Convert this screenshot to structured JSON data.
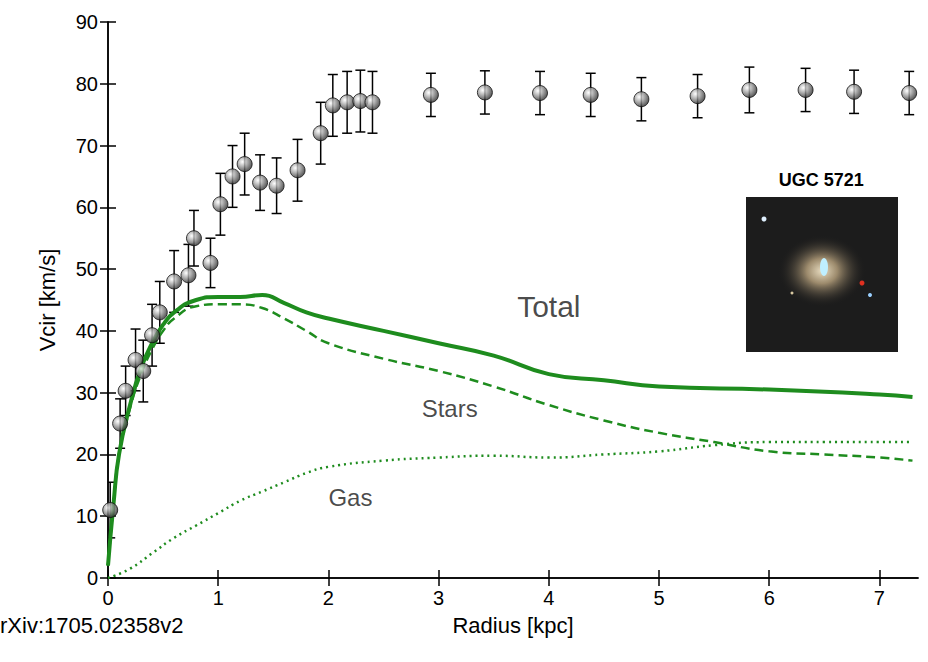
{
  "chart_data": {
    "type": "scatter",
    "x_label": "Radius [kpc]",
    "y_label": "Vcir [km/s]",
    "xlim": [
      0,
      7.35
    ],
    "ylim": [
      0,
      90
    ],
    "xticks": [
      0,
      1,
      2,
      3,
      4,
      5,
      6,
      7
    ],
    "yticks": [
      0,
      10,
      20,
      30,
      40,
      50,
      60,
      70,
      80,
      90
    ],
    "grid": false,
    "series": [
      {
        "type": "scatter",
        "color": "#9a9a9a",
        "marker": "circle",
        "x": [
          0.02,
          0.11,
          0.16,
          0.25,
          0.32,
          0.4,
          0.47,
          0.6,
          0.73,
          0.78,
          0.93,
          1.02,
          1.13,
          1.24,
          1.38,
          1.53,
          1.72,
          1.93,
          2.04,
          2.17,
          2.29,
          2.4,
          2.93,
          3.42,
          3.92,
          4.38,
          4.84,
          5.35,
          5.82,
          6.33,
          6.77,
          7.27
        ],
        "values": [
          11,
          25,
          30.3,
          35.3,
          33.5,
          39.3,
          43,
          48,
          49,
          55,
          51,
          60.5,
          65,
          67,
          64,
          63.5,
          66,
          72,
          76.5,
          77,
          77.2,
          77,
          78.2,
          78.6,
          78.5,
          78.2,
          77.5,
          78,
          79,
          79,
          78.7,
          78.5
        ],
        "errors": [
          4.5,
          4,
          4,
          5,
          5,
          5,
          5,
          5,
          5,
          4.5,
          4,
          5,
          5,
          5,
          4.5,
          4.5,
          5,
          5,
          5,
          5,
          5,
          5,
          3.5,
          3.5,
          3.5,
          3.5,
          3.5,
          3.5,
          3.7,
          3.5,
          3.5,
          3.5
        ]
      },
      {
        "type": "line",
        "color": "#1e8c1e",
        "line_style": "solid",
        "x": [
          0,
          0.05,
          0.1,
          0.2,
          0.3,
          0.4,
          0.5,
          0.6,
          0.8,
          1.0,
          1.2,
          1.4,
          1.6,
          1.8,
          2,
          2.5,
          3,
          3.5,
          4,
          4.5,
          5,
          6,
          7,
          7.3
        ],
        "values": [
          2,
          12,
          20,
          28,
          34,
          38,
          41,
          43,
          45,
          45.5,
          45.5,
          45.8,
          44.5,
          43,
          42,
          40,
          38,
          36,
          33,
          32,
          31,
          30.5,
          29.7,
          29.3
        ]
      },
      {
        "type": "line",
        "color": "#1e8c1e",
        "line_style": "dashed",
        "x": [
          0,
          0.05,
          0.1,
          0.2,
          0.3,
          0.4,
          0.5,
          0.6,
          0.8,
          1.0,
          1.2,
          1.4,
          1.6,
          1.8,
          2,
          2.5,
          3,
          3.5,
          4,
          4.5,
          5,
          5.5,
          6,
          6.5,
          7,
          7.3
        ],
        "values": [
          2,
          12,
          20,
          27.5,
          33,
          37,
          40,
          42,
          44,
          44.3,
          44.3,
          43.7,
          42,
          40,
          38,
          35.5,
          33.5,
          31,
          28,
          25.5,
          23.5,
          22,
          20.5,
          20,
          19.5,
          19
        ]
      },
      {
        "type": "line",
        "color": "#1e8c1e",
        "line_style": "dotted",
        "x": [
          0,
          0.2,
          0.4,
          0.6,
          0.8,
          1.0,
          1.2,
          1.4,
          1.6,
          1.8,
          2,
          2.5,
          3,
          3.5,
          4,
          4.5,
          5,
          5.5,
          6,
          6.5,
          7,
          7.3
        ],
        "values": [
          0,
          1.5,
          4,
          6.5,
          8.5,
          10.5,
          12.5,
          14,
          15.5,
          17,
          18,
          19,
          19.5,
          19.8,
          19.5,
          20,
          20.5,
          21.5,
          22,
          22,
          22,
          22
        ]
      }
    ],
    "annotations": [
      {
        "text": "Total",
        "x": 4.0,
        "y": 44
      },
      {
        "text": "Stars",
        "x": 3.1,
        "y": 27.5
      },
      {
        "text": "Gas",
        "x": 2.2,
        "y": 13
      }
    ],
    "inset_label": "UGC 5721",
    "source": "rXiv:1705.02358v2"
  }
}
